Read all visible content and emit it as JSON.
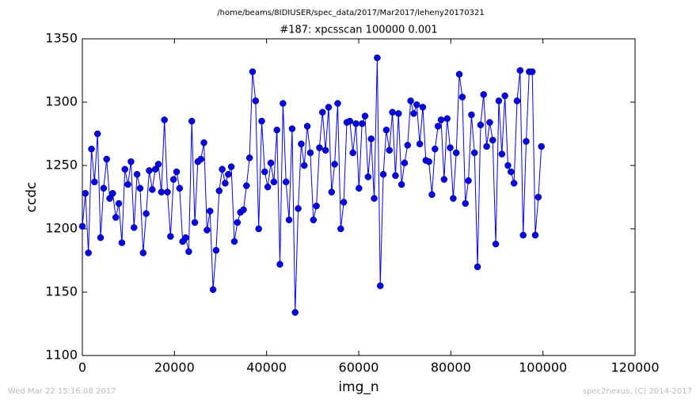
{
  "chart_data": {
    "type": "line",
    "title": "/home/beams/8IDIUSER/spec_data/2017/Mar2017/leheny20170321",
    "subtitle": "#187: xpcsscan 100000 0.001",
    "x_label": "img_n",
    "y_label": "ccdc",
    "footer_left": "Wed Mar 22 15:16:08 2017",
    "footer_right": "spec2nexus, (C) 2014-2017",
    "x": [
      0,
      660,
      1320,
      1980,
      2640,
      3300,
      3960,
      4620,
      5280,
      5940,
      6600,
      7260,
      7920,
      8580,
      9240,
      9900,
      10560,
      11220,
      11880,
      12540,
      13200,
      13860,
      14520,
      15180,
      15840,
      16500,
      17160,
      17820,
      18480,
      19140,
      19800,
      20460,
      21120,
      21780,
      22440,
      23100,
      23760,
      24420,
      25080,
      25740,
      26400,
      27060,
      27720,
      28380,
      29040,
      29700,
      30360,
      31020,
      31680,
      32340,
      33000,
      33660,
      34320,
      34980,
      35640,
      36300,
      36960,
      37620,
      38280,
      38940,
      39600,
      40260,
      40920,
      41580,
      42240,
      42900,
      43560,
      44220,
      44880,
      45540,
      46200,
      46860,
      47520,
      48180,
      48840,
      49500,
      50160,
      50820,
      51480,
      52140,
      52800,
      53460,
      54120,
      54780,
      55440,
      56100,
      56760,
      57420,
      58080,
      58740,
      59400,
      60060,
      60720,
      61380,
      62040,
      62700,
      63360,
      64020,
      64680,
      65340,
      66000,
      66660,
      67320,
      67980,
      68640,
      69300,
      69960,
      70620,
      71280,
      71940,
      72600,
      73260,
      73920,
      74580,
      75240,
      75900,
      76560,
      77220,
      77880,
      78540,
      79200,
      79860,
      80520,
      81180,
      81840,
      82500,
      83160,
      83820,
      84480,
      85140,
      85800,
      86460,
      87120,
      87780,
      88440,
      89100,
      89760,
      90420,
      91080,
      91740,
      92400,
      93060,
      93720,
      94380,
      95040,
      95700,
      96360,
      97020,
      97680,
      98340,
      99000,
      99660
    ],
    "series": [
      {
        "color": "#0000ff",
        "values": [
          1202,
          1228,
          1181,
          1263,
          1237,
          1275,
          1193,
          1232,
          1255,
          1224,
          1228,
          1209,
          1220,
          1189,
          1247,
          1235,
          1253,
          1201,
          1243,
          1232,
          1181,
          1212,
          1246,
          1231,
          1247,
          1251,
          1229,
          1286,
          1229,
          1194,
          1239,
          1245,
          1232,
          1190,
          1193,
          1182,
          1285,
          1205,
          1253,
          1255,
          1268,
          1199,
          1214,
          1152,
          1183,
          1230,
          1247,
          1236,
          1243,
          1249,
          1190,
          1205,
          1213,
          1215,
          1234,
          1256,
          1324,
          1301,
          1200,
          1285,
          1245,
          1233,
          1252,
          1237,
          1278,
          1172,
          1299,
          1237,
          1207,
          1279,
          1134,
          1216,
          1267,
          1250,
          1281,
          1260,
          1207,
          1218,
          1264,
          1292,
          1262,
          1296,
          1229,
          1251,
          1299,
          1200,
          1221,
          1284,
          1285,
          1260,
          1283,
          1232,
          1283,
          1289,
          1241,
          1271,
          1224,
          1335,
          1155,
          1243,
          1278,
          1262,
          1292,
          1242,
          1291,
          1235,
          1252,
          1266,
          1301,
          1291,
          1298,
          1267,
          1296,
          1254,
          1253,
          1227,
          1263,
          1281,
          1286,
          1239,
          1287,
          1264,
          1224,
          1260,
          1322,
          1304,
          1220,
          1238,
          1290,
          1260,
          1170,
          1282,
          1306,
          1265,
          1284,
          1270,
          1188,
          1301,
          1259,
          1305,
          1250,
          1245,
          1236,
          1301,
          1325,
          1195,
          1269,
          1324,
          1324,
          1195,
          1225,
          1265
        ]
      }
    ],
    "xlim": [
      0,
      120000
    ],
    "xticks": [
      0,
      20000,
      40000,
      60000,
      80000,
      100000,
      120000
    ],
    "ylim": [
      1100,
      1350
    ],
    "yticks": [
      1100,
      1150,
      1200,
      1250,
      1300,
      1350
    ],
    "grid": false
  }
}
